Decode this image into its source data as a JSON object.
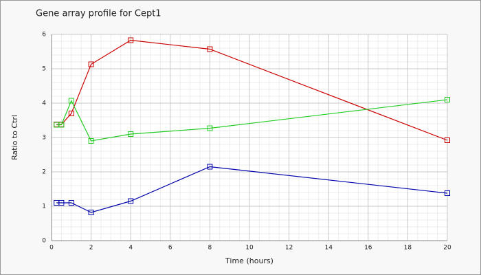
{
  "chart_data": {
    "type": "line",
    "title": "Gene array profile for Cept1",
    "x_label": "Time (hours)",
    "y_label": "Ratio to Ctrl",
    "x": [
      0.25,
      0.5,
      1,
      2,
      4,
      8,
      20
    ],
    "series": [
      {
        "color": "#cc0000",
        "values": [
          3.38,
          3.38,
          3.7,
          5.13,
          5.83,
          5.57,
          2.92
        ]
      },
      {
        "color": "#22cc22",
        "values": [
          3.37,
          3.37,
          4.07,
          2.9,
          3.1,
          3.27,
          4.1
        ]
      },
      {
        "color": "#0000aa",
        "values": [
          1.1,
          1.1,
          1.1,
          0.82,
          1.15,
          2.15,
          1.38
        ]
      }
    ],
    "xlim": [
      0,
      20
    ],
    "xticks": [
      0,
      2,
      4,
      6,
      8,
      10,
      12,
      14,
      16,
      18,
      20
    ],
    "ylim": [
      0,
      6
    ],
    "yticks": [
      0,
      1,
      2,
      3,
      4,
      5,
      6
    ],
    "grid": true
  }
}
